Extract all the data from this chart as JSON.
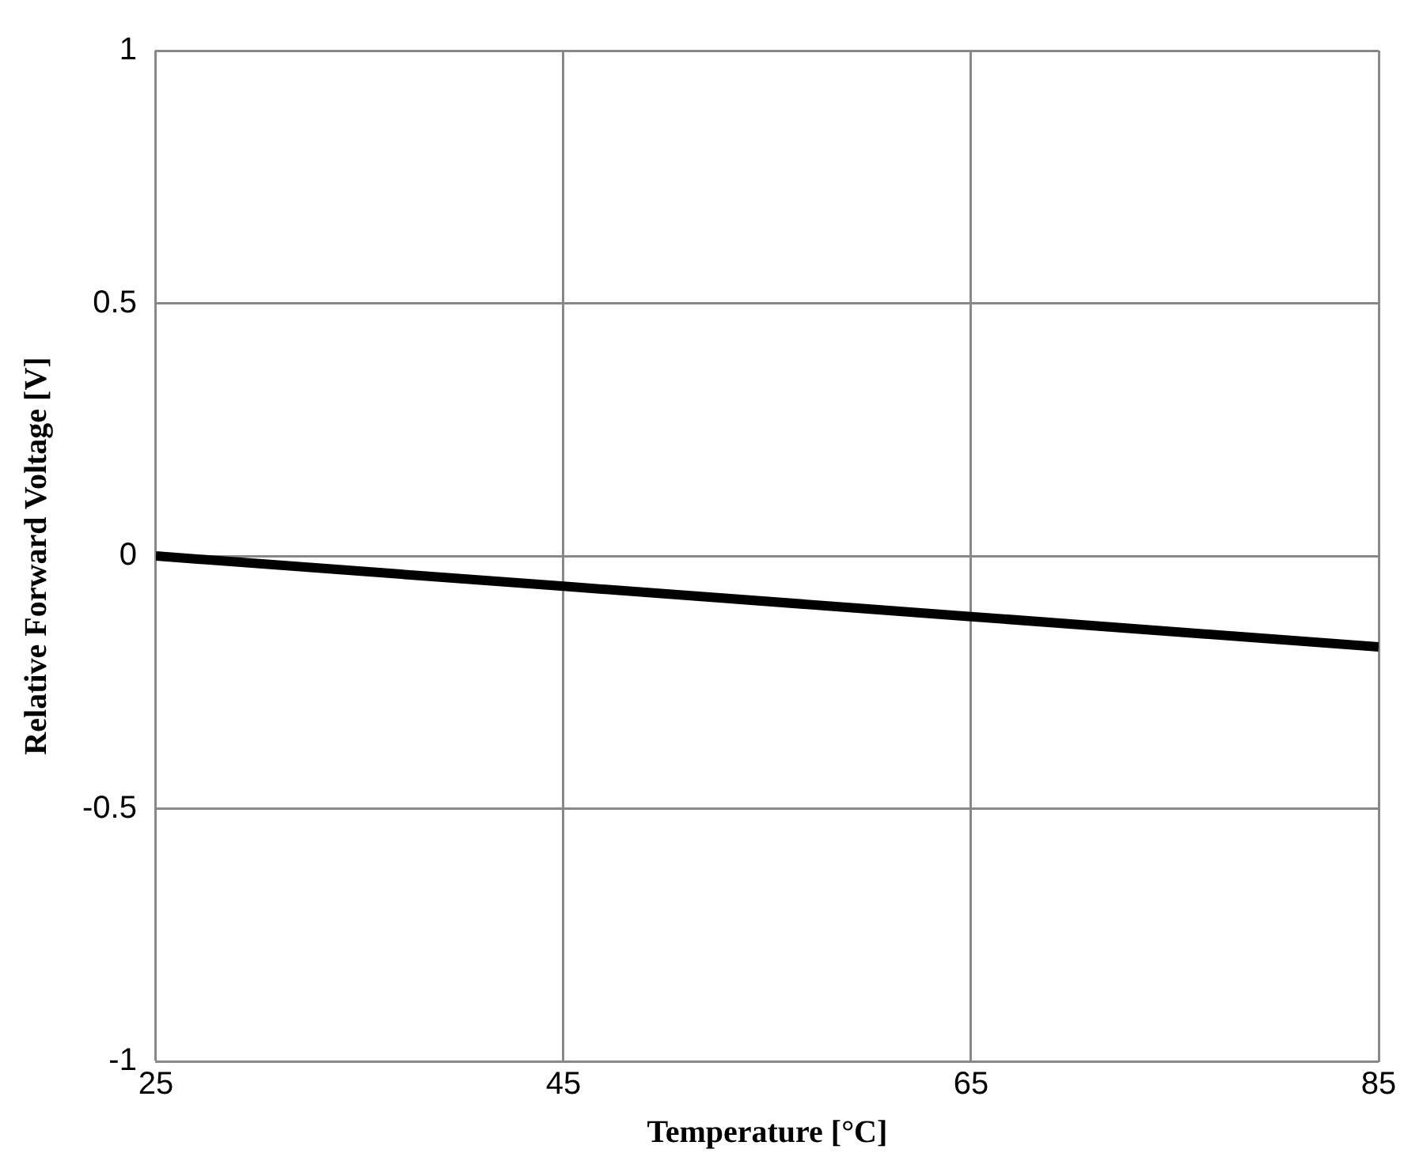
{
  "chart_data": {
    "type": "line",
    "xlabel": "Temperature [°C]",
    "ylabel": "Relative Forward Voltage [V]",
    "x": [
      25,
      45,
      65,
      85
    ],
    "series": [
      {
        "color": "#000000",
        "values": [
          0,
          -0.06,
          -0.12,
          -0.18
        ]
      }
    ],
    "xlim": [
      25,
      85
    ],
    "xticks": [
      25,
      45,
      65,
      85
    ],
    "ylim": [
      -1,
      1
    ],
    "yticks": [
      -1,
      -0.5,
      0,
      0.5,
      1
    ],
    "grid": true,
    "legend": false,
    "marker": "none",
    "line_style": "solid"
  }
}
